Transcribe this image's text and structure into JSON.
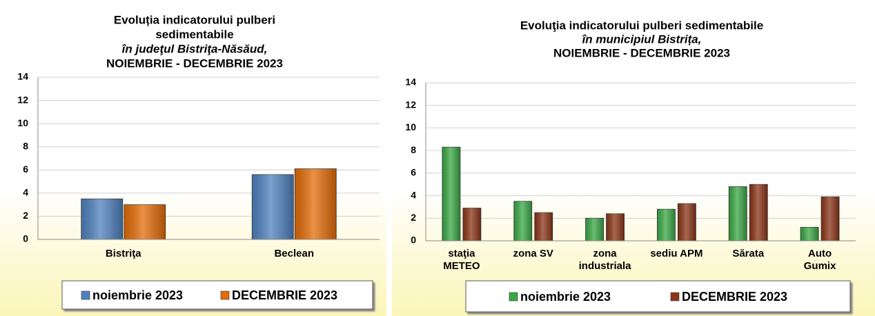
{
  "chart_data": [
    {
      "type": "bar",
      "title": [
        "Evoluția indicatorului pulberi",
        "sedimentabile",
        "în judeţul Bistriţa-Năsăud,",
        "NOIEMBRIE - DECEMBRIE 2023"
      ],
      "categories": [
        [
          "Bistriţa"
        ],
        [
          "Beclean"
        ]
      ],
      "series": [
        {
          "name": "noiembrie 2023",
          "color": "#4f81bd",
          "values": [
            3.5,
            5.6
          ]
        },
        {
          "name": "DECEMBRIE 2023",
          "color": "#e36c09",
          "values": [
            3.0,
            6.1
          ]
        }
      ],
      "ylim": [
        0,
        14
      ],
      "yticks": [
        0,
        2,
        4,
        6,
        8,
        10,
        12,
        14
      ],
      "grid": true
    },
    {
      "type": "bar",
      "title": [
        "Evoluţia indicatorului pulberi sedimentabile",
        "în municipiul Bistrița,",
        "NOIEMBRIE - DECEMBRIE 2023"
      ],
      "categories": [
        [
          "staţia",
          "METEO"
        ],
        [
          "zona SV"
        ],
        [
          "zona",
          "industriala"
        ],
        [
          "sediu APM"
        ],
        [
          "Sărata"
        ],
        [
          "Auto",
          "Gumix"
        ]
      ],
      "series": [
        {
          "name": "noiembrie 2023",
          "color": "#3aa845",
          "values": [
            8.3,
            3.5,
            2.0,
            2.8,
            4.8,
            1.2
          ]
        },
        {
          "name": "DECEMBRIE 2023",
          "color": "#8b3518",
          "values": [
            2.9,
            2.5,
            2.4,
            3.3,
            5.0,
            3.9
          ]
        }
      ],
      "ylim": [
        0,
        14
      ],
      "yticks": [
        0,
        2,
        4,
        6,
        8,
        10,
        12,
        14
      ],
      "grid": true
    }
  ]
}
